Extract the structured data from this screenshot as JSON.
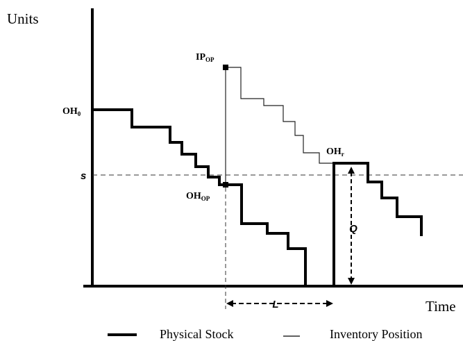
{
  "axes": {
    "y_label": "Units",
    "x_label": "Time"
  },
  "labels": {
    "oh0": {
      "text": "OH",
      "sub": "0"
    },
    "ip_op": {
      "text": "IP",
      "sub": "OP"
    },
    "oh_op": {
      "text": "OH",
      "sub": "OP"
    },
    "oh_r": {
      "text": "OH",
      "sub": "r"
    },
    "s": "s",
    "q": "Q",
    "l": "L"
  },
  "legend": [
    "Physical Stock",
    "Inventory Position"
  ]
}
